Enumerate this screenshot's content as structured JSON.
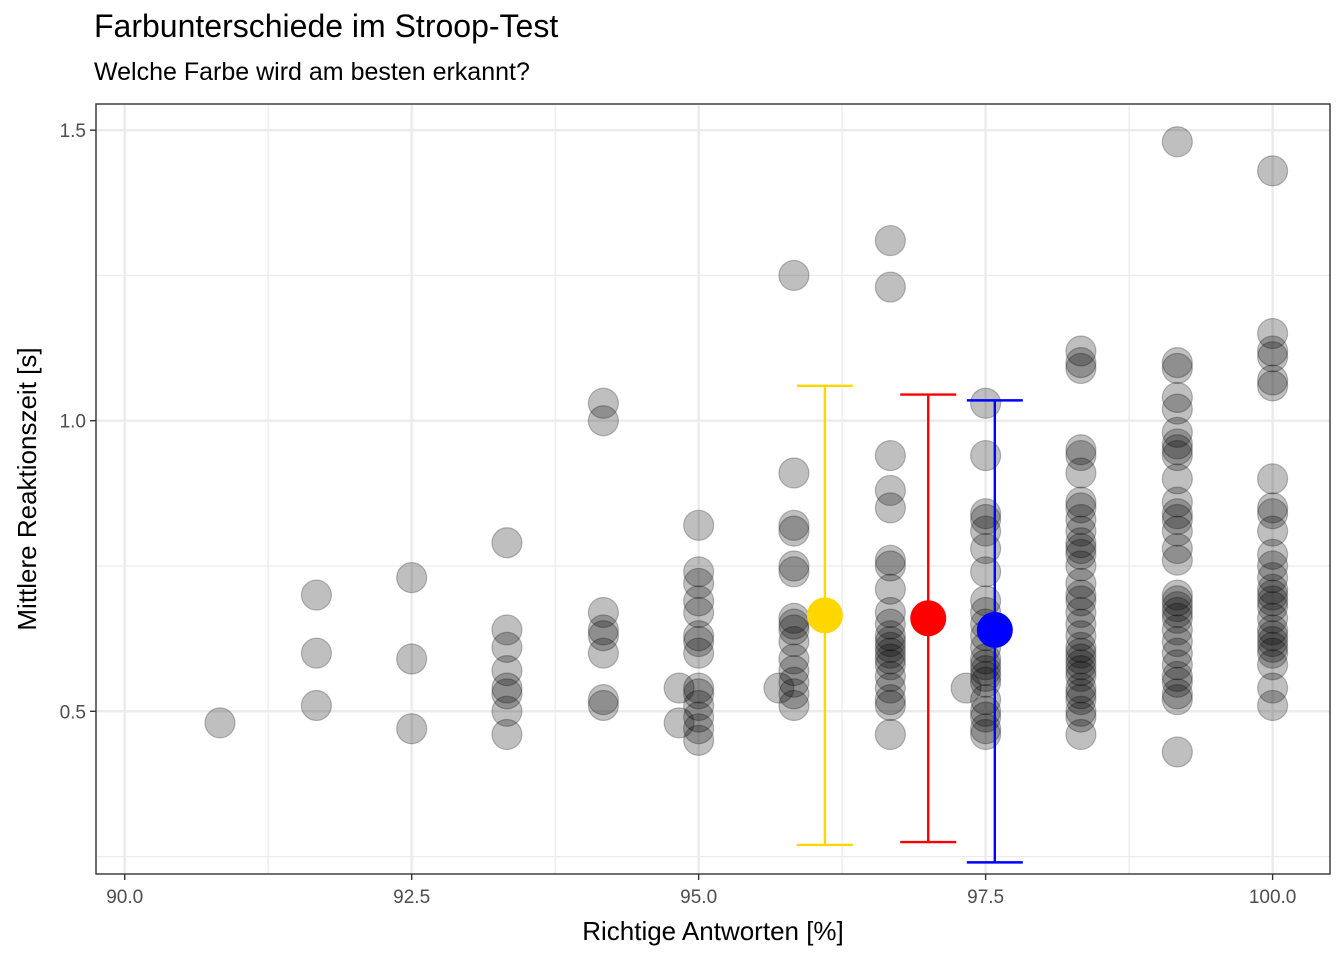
{
  "chart_data": {
    "type": "scatter",
    "title": "Farbunterschiede im Stroop-Test",
    "subtitle": "Welche Farbe wird am besten erkannt?",
    "xlabel": "Richtige Antworten [%]",
    "ylabel": "Mittlere Reaktionszeit [s]",
    "xlim": [
      89.75,
      100.5
    ],
    "ylim": [
      0.22,
      1.545
    ],
    "x_ticks": [
      90.0,
      92.5,
      95.0,
      97.5,
      100.0
    ],
    "x_tick_labels": [
      "90.0",
      "92.5",
      "95.0",
      "97.5",
      "100.0"
    ],
    "y_ticks": [
      0.5,
      1.0,
      1.5
    ],
    "y_tick_labels": [
      "0.5",
      "1.0",
      "1.5"
    ],
    "grid": true,
    "legend": "none",
    "points": [
      {
        "x": 90.83,
        "y": 0.48
      },
      {
        "x": 91.67,
        "y": 0.7
      },
      {
        "x": 91.67,
        "y": 0.6
      },
      {
        "x": 91.67,
        "y": 0.51
      },
      {
        "x": 92.5,
        "y": 0.73
      },
      {
        "x": 92.5,
        "y": 0.59
      },
      {
        "x": 92.5,
        "y": 0.47
      },
      {
        "x": 93.33,
        "y": 0.79
      },
      {
        "x": 93.33,
        "y": 0.64
      },
      {
        "x": 93.33,
        "y": 0.61
      },
      {
        "x": 93.33,
        "y": 0.57
      },
      {
        "x": 93.33,
        "y": 0.54
      },
      {
        "x": 93.33,
        "y": 0.53
      },
      {
        "x": 93.33,
        "y": 0.5
      },
      {
        "x": 93.33,
        "y": 0.46
      },
      {
        "x": 94.17,
        "y": 1.03
      },
      {
        "x": 94.17,
        "y": 1.0
      },
      {
        "x": 94.17,
        "y": 0.67
      },
      {
        "x": 94.17,
        "y": 0.64
      },
      {
        "x": 94.17,
        "y": 0.63
      },
      {
        "x": 94.17,
        "y": 0.6
      },
      {
        "x": 94.17,
        "y": 0.52
      },
      {
        "x": 94.17,
        "y": 0.51
      },
      {
        "x": 94.83,
        "y": 0.54
      },
      {
        "x": 94.83,
        "y": 0.48
      },
      {
        "x": 95.0,
        "y": 0.82
      },
      {
        "x": 95.0,
        "y": 0.74
      },
      {
        "x": 95.0,
        "y": 0.72
      },
      {
        "x": 95.0,
        "y": 0.69
      },
      {
        "x": 95.0,
        "y": 0.67
      },
      {
        "x": 95.0,
        "y": 0.63
      },
      {
        "x": 95.0,
        "y": 0.62
      },
      {
        "x": 95.0,
        "y": 0.6
      },
      {
        "x": 95.0,
        "y": 0.54
      },
      {
        "x": 95.0,
        "y": 0.53
      },
      {
        "x": 95.0,
        "y": 0.51
      },
      {
        "x": 95.0,
        "y": 0.49
      },
      {
        "x": 95.0,
        "y": 0.47
      },
      {
        "x": 95.0,
        "y": 0.45
      },
      {
        "x": 95.83,
        "y": 1.25
      },
      {
        "x": 95.83,
        "y": 0.91
      },
      {
        "x": 95.83,
        "y": 0.82
      },
      {
        "x": 95.83,
        "y": 0.81
      },
      {
        "x": 95.83,
        "y": 0.75
      },
      {
        "x": 95.83,
        "y": 0.74
      },
      {
        "x": 95.83,
        "y": 0.66
      },
      {
        "x": 95.83,
        "y": 0.65
      },
      {
        "x": 95.83,
        "y": 0.64
      },
      {
        "x": 95.83,
        "y": 0.62
      },
      {
        "x": 95.83,
        "y": 0.59
      },
      {
        "x": 95.83,
        "y": 0.57
      },
      {
        "x": 95.83,
        "y": 0.55
      },
      {
        "x": 95.83,
        "y": 0.53
      },
      {
        "x": 95.83,
        "y": 0.51
      },
      {
        "x": 95.7,
        "y": 0.54
      },
      {
        "x": 96.67,
        "y": 1.31
      },
      {
        "x": 96.67,
        "y": 1.23
      },
      {
        "x": 96.67,
        "y": 0.94
      },
      {
        "x": 96.67,
        "y": 0.88
      },
      {
        "x": 96.67,
        "y": 0.85
      },
      {
        "x": 96.67,
        "y": 0.76
      },
      {
        "x": 96.67,
        "y": 0.75
      },
      {
        "x": 96.67,
        "y": 0.71
      },
      {
        "x": 96.67,
        "y": 0.67
      },
      {
        "x": 96.67,
        "y": 0.65
      },
      {
        "x": 96.67,
        "y": 0.63
      },
      {
        "x": 96.67,
        "y": 0.62
      },
      {
        "x": 96.67,
        "y": 0.61
      },
      {
        "x": 96.67,
        "y": 0.6
      },
      {
        "x": 96.67,
        "y": 0.59
      },
      {
        "x": 96.67,
        "y": 0.58
      },
      {
        "x": 96.67,
        "y": 0.56
      },
      {
        "x": 96.67,
        "y": 0.54
      },
      {
        "x": 96.67,
        "y": 0.52
      },
      {
        "x": 96.67,
        "y": 0.51
      },
      {
        "x": 96.67,
        "y": 0.46
      },
      {
        "x": 97.33,
        "y": 0.54
      },
      {
        "x": 97.5,
        "y": 1.03
      },
      {
        "x": 97.5,
        "y": 0.94
      },
      {
        "x": 97.5,
        "y": 0.84
      },
      {
        "x": 97.5,
        "y": 0.83
      },
      {
        "x": 97.5,
        "y": 0.81
      },
      {
        "x": 97.5,
        "y": 0.78
      },
      {
        "x": 97.5,
        "y": 0.74
      },
      {
        "x": 97.5,
        "y": 0.69
      },
      {
        "x": 97.5,
        "y": 0.67
      },
      {
        "x": 97.5,
        "y": 0.65
      },
      {
        "x": 97.5,
        "y": 0.63
      },
      {
        "x": 97.5,
        "y": 0.61
      },
      {
        "x": 97.5,
        "y": 0.59
      },
      {
        "x": 97.5,
        "y": 0.58
      },
      {
        "x": 97.5,
        "y": 0.57
      },
      {
        "x": 97.5,
        "y": 0.56
      },
      {
        "x": 97.5,
        "y": 0.55
      },
      {
        "x": 97.5,
        "y": 0.52
      },
      {
        "x": 97.5,
        "y": 0.5
      },
      {
        "x": 97.5,
        "y": 0.49
      },
      {
        "x": 97.5,
        "y": 0.47
      },
      {
        "x": 97.5,
        "y": 0.46
      },
      {
        "x": 98.33,
        "y": 1.12
      },
      {
        "x": 98.33,
        "y": 1.1
      },
      {
        "x": 98.33,
        "y": 1.09
      },
      {
        "x": 98.33,
        "y": 0.95
      },
      {
        "x": 98.33,
        "y": 0.94
      },
      {
        "x": 98.33,
        "y": 0.91
      },
      {
        "x": 98.33,
        "y": 0.86
      },
      {
        "x": 98.33,
        "y": 0.85
      },
      {
        "x": 98.33,
        "y": 0.83
      },
      {
        "x": 98.33,
        "y": 0.81
      },
      {
        "x": 98.33,
        "y": 0.79
      },
      {
        "x": 98.33,
        "y": 0.78
      },
      {
        "x": 98.33,
        "y": 0.77
      },
      {
        "x": 98.33,
        "y": 0.75
      },
      {
        "x": 98.33,
        "y": 0.72
      },
      {
        "x": 98.33,
        "y": 0.7
      },
      {
        "x": 98.33,
        "y": 0.69
      },
      {
        "x": 98.33,
        "y": 0.67
      },
      {
        "x": 98.33,
        "y": 0.65
      },
      {
        "x": 98.33,
        "y": 0.63
      },
      {
        "x": 98.33,
        "y": 0.61
      },
      {
        "x": 98.33,
        "y": 0.6
      },
      {
        "x": 98.33,
        "y": 0.59
      },
      {
        "x": 98.33,
        "y": 0.58
      },
      {
        "x": 98.33,
        "y": 0.57
      },
      {
        "x": 98.33,
        "y": 0.56
      },
      {
        "x": 98.33,
        "y": 0.54
      },
      {
        "x": 98.33,
        "y": 0.53
      },
      {
        "x": 98.33,
        "y": 0.52
      },
      {
        "x": 98.33,
        "y": 0.5
      },
      {
        "x": 98.33,
        "y": 0.49
      },
      {
        "x": 98.33,
        "y": 0.46
      },
      {
        "x": 99.17,
        "y": 1.48
      },
      {
        "x": 99.17,
        "y": 1.1
      },
      {
        "x": 99.17,
        "y": 1.09
      },
      {
        "x": 99.17,
        "y": 1.04
      },
      {
        "x": 99.17,
        "y": 1.02
      },
      {
        "x": 99.17,
        "y": 0.98
      },
      {
        "x": 99.17,
        "y": 0.96
      },
      {
        "x": 99.17,
        "y": 0.95
      },
      {
        "x": 99.17,
        "y": 0.94
      },
      {
        "x": 99.17,
        "y": 0.9
      },
      {
        "x": 99.17,
        "y": 0.86
      },
      {
        "x": 99.17,
        "y": 0.84
      },
      {
        "x": 99.17,
        "y": 0.83
      },
      {
        "x": 99.17,
        "y": 0.81
      },
      {
        "x": 99.17,
        "y": 0.78
      },
      {
        "x": 99.17,
        "y": 0.76
      },
      {
        "x": 99.17,
        "y": 0.7
      },
      {
        "x": 99.17,
        "y": 0.69
      },
      {
        "x": 99.17,
        "y": 0.68
      },
      {
        "x": 99.17,
        "y": 0.67
      },
      {
        "x": 99.17,
        "y": 0.66
      },
      {
        "x": 99.17,
        "y": 0.64
      },
      {
        "x": 99.17,
        "y": 0.62
      },
      {
        "x": 99.17,
        "y": 0.6
      },
      {
        "x": 99.17,
        "y": 0.58
      },
      {
        "x": 99.17,
        "y": 0.56
      },
      {
        "x": 99.17,
        "y": 0.55
      },
      {
        "x": 99.17,
        "y": 0.53
      },
      {
        "x": 99.17,
        "y": 0.52
      },
      {
        "x": 99.17,
        "y": 0.43
      },
      {
        "x": 100.0,
        "y": 1.43
      },
      {
        "x": 100.0,
        "y": 1.15
      },
      {
        "x": 100.0,
        "y": 1.12
      },
      {
        "x": 100.0,
        "y": 1.11
      },
      {
        "x": 100.0,
        "y": 1.07
      },
      {
        "x": 100.0,
        "y": 1.06
      },
      {
        "x": 100.0,
        "y": 0.9
      },
      {
        "x": 100.0,
        "y": 0.85
      },
      {
        "x": 100.0,
        "y": 0.84
      },
      {
        "x": 100.0,
        "y": 0.81
      },
      {
        "x": 100.0,
        "y": 0.77
      },
      {
        "x": 100.0,
        "y": 0.75
      },
      {
        "x": 100.0,
        "y": 0.73
      },
      {
        "x": 100.0,
        "y": 0.71
      },
      {
        "x": 100.0,
        "y": 0.7
      },
      {
        "x": 100.0,
        "y": 0.69
      },
      {
        "x": 100.0,
        "y": 0.68
      },
      {
        "x": 100.0,
        "y": 0.66
      },
      {
        "x": 100.0,
        "y": 0.64
      },
      {
        "x": 100.0,
        "y": 0.63
      },
      {
        "x": 100.0,
        "y": 0.62
      },
      {
        "x": 100.0,
        "y": 0.61
      },
      {
        "x": 100.0,
        "y": 0.6
      },
      {
        "x": 100.0,
        "y": 0.58
      },
      {
        "x": 100.0,
        "y": 0.54
      },
      {
        "x": 100.0,
        "y": 0.51
      }
    ],
    "summaries": [
      {
        "color": "#FFD700",
        "x": 96.1,
        "mean": 0.665,
        "low": 0.27,
        "high": 1.06
      },
      {
        "color": "#FF0000",
        "x": 97.0,
        "mean": 0.66,
        "low": 0.275,
        "high": 1.045
      },
      {
        "color": "#0000FF",
        "x": 97.58,
        "mean": 0.64,
        "low": 0.24,
        "high": 1.035
      }
    ],
    "colors": {
      "points": "#000000",
      "points_opacity": 0.25,
      "grid": "#ebebeb",
      "panel_border": "#333333"
    }
  }
}
